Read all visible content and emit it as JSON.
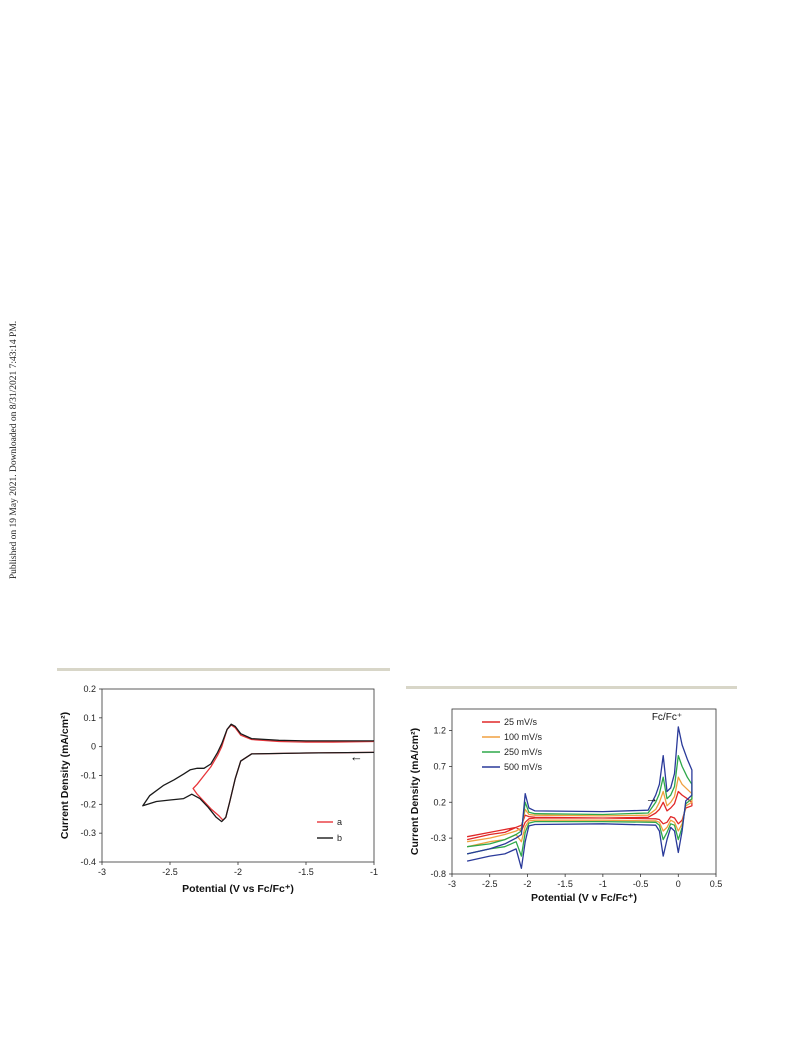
{
  "watermark": "Published on 19 May 2021. Downloaded on 8/31/2021 7:43:14 PM.",
  "colors": {
    "rule": "#d8d6c8",
    "axis": "#333333"
  },
  "chart_data": [
    {
      "type": "line",
      "title": "",
      "xlabel": "Potential (V vs Fc/Fc⁺)",
      "ylabel": "Current Density (mA/cm²)",
      "xlim": [
        -3,
        -1
      ],
      "ylim": [
        -0.4,
        0.2
      ],
      "xticks": [
        -3,
        -2.5,
        -2,
        -1.5,
        -1
      ],
      "yticks": [
        -0.4,
        -0.3,
        -0.2,
        -0.1,
        0,
        0.1,
        0.2
      ],
      "xtick_labels": [
        "-3",
        "-2.5",
        "-2",
        "-1.5",
        "-1"
      ],
      "ytick_labels": [
        "-0.4",
        "-0.3",
        "-0.2",
        "-0.1",
        "0",
        "0.1",
        "0.2"
      ],
      "grid": false,
      "legend": "bottom-right",
      "annotations": [
        {
          "text": "←",
          "x": -1.13,
          "y": -0.05
        }
      ],
      "series": [
        {
          "name": "a",
          "color": "#e8353a",
          "x": [
            -1.0,
            -1.5,
            -1.9,
            -1.98,
            -2.02,
            -2.06,
            -2.09,
            -2.11,
            -2.14,
            -2.2,
            -2.3,
            -2.33,
            -2.3,
            -2.25,
            -2.2,
            -2.15,
            -2.12,
            -2.1,
            -2.08,
            -2.05,
            -2.02,
            -1.98,
            -1.9,
            -1.7,
            -1.5,
            -1.3,
            -1.0
          ],
          "y": [
            -0.02,
            -0.022,
            -0.025,
            -0.05,
            -0.11,
            -0.19,
            -0.245,
            -0.255,
            -0.24,
            -0.215,
            -0.165,
            -0.145,
            -0.13,
            -0.1,
            -0.07,
            -0.03,
            0.0,
            0.03,
            0.06,
            0.075,
            0.065,
            0.04,
            0.025,
            0.018,
            0.016,
            0.016,
            0.018
          ]
        },
        {
          "name": "b",
          "color": "#1a1a1a",
          "x": [
            -1.0,
            -1.5,
            -1.9,
            -1.98,
            -2.02,
            -2.06,
            -2.09,
            -2.12,
            -2.16,
            -2.22,
            -2.28,
            -2.34,
            -2.4,
            -2.5,
            -2.6,
            -2.7,
            -2.65,
            -2.55,
            -2.47,
            -2.4,
            -2.35,
            -2.3,
            -2.25,
            -2.2,
            -2.15,
            -2.12,
            -2.1,
            -2.08,
            -2.05,
            -2.02,
            -1.98,
            -1.9,
            -1.7,
            -1.5,
            -1.3,
            -1.0
          ],
          "y": [
            -0.02,
            -0.022,
            -0.025,
            -0.05,
            -0.11,
            -0.19,
            -0.245,
            -0.26,
            -0.245,
            -0.21,
            -0.18,
            -0.165,
            -0.18,
            -0.185,
            -0.19,
            -0.205,
            -0.17,
            -0.135,
            -0.115,
            -0.095,
            -0.08,
            -0.075,
            -0.075,
            -0.06,
            -0.02,
            0.01,
            0.035,
            0.06,
            0.078,
            0.07,
            0.045,
            0.028,
            0.022,
            0.02,
            0.02,
            0.02
          ]
        }
      ]
    },
    {
      "type": "line",
      "title": "",
      "xlabel": "Potential (V v Fc/Fc⁺)",
      "ylabel": "Current Density (mA/cm²)",
      "xlim": [
        -3,
        0.5
      ],
      "ylim": [
        -0.8,
        1.5
      ],
      "xticks": [
        -3,
        -2.5,
        -2,
        -1.5,
        -1,
        -0.5,
        0,
        0.5
      ],
      "yticks": [
        -0.8,
        -0.3,
        0.2,
        0.7,
        1.2
      ],
      "xtick_labels": [
        "-3",
        "-2.5",
        "-2",
        "-1.5",
        "-1",
        "-0.5",
        "0",
        "0.5"
      ],
      "ytick_labels": [
        "-0.8",
        "-0.3",
        "0.2",
        "0.7",
        "1.2"
      ],
      "grid": false,
      "legend": "top-left",
      "annotations": [
        {
          "text": "Fc/Fc⁺",
          "x": -0.15,
          "y": 1.35
        },
        {
          "text": "→",
          "x": -0.35,
          "y": 0.2
        }
      ],
      "series": [
        {
          "name": "25 mV/s",
          "color": "#e02828",
          "x": [
            -2.8,
            -2.5,
            -2.3,
            -2.15,
            -2.08,
            -2.03,
            -1.98,
            -1.9,
            -1.0,
            -0.4,
            -0.3,
            -0.25,
            -0.2,
            -0.15,
            -0.1,
            -0.05,
            0.0,
            0.05,
            0.12,
            0.18,
            0.18,
            0.1,
            0.05,
            0.0,
            -0.05,
            -0.1,
            -0.15,
            -0.2,
            -0.25,
            -0.3,
            -1.0,
            -1.9,
            -1.98,
            -2.03,
            -2.08,
            -2.15,
            -2.3,
            -2.5,
            -2.8
          ],
          "y": [
            -0.28,
            -0.22,
            -0.18,
            -0.15,
            -0.12,
            0.02,
            0.0,
            -0.01,
            -0.02,
            -0.01,
            0.05,
            0.1,
            0.2,
            0.08,
            0.12,
            0.18,
            0.35,
            0.3,
            0.25,
            0.2,
            0.15,
            0.12,
            -0.05,
            -0.1,
            -0.02,
            0.0,
            -0.08,
            -0.1,
            -0.04,
            -0.03,
            -0.02,
            -0.02,
            -0.03,
            -0.08,
            -0.2,
            -0.15,
            -0.22,
            -0.25,
            -0.32
          ]
        },
        {
          "name": "100 mV/s",
          "color": "#f0a040",
          "x": [
            -2.8,
            -2.5,
            -2.3,
            -2.15,
            -2.08,
            -2.03,
            -1.98,
            -1.9,
            -1.0,
            -0.4,
            -0.3,
            -0.25,
            -0.2,
            -0.15,
            -0.1,
            -0.05,
            0.0,
            0.05,
            0.12,
            0.18,
            0.18,
            0.1,
            0.05,
            0.0,
            -0.05,
            -0.1,
            -0.15,
            -0.2,
            -0.25,
            -0.3,
            -1.0,
            -1.9,
            -1.98,
            -2.03,
            -2.08,
            -2.15,
            -2.3,
            -2.5,
            -2.8
          ],
          "y": [
            -0.35,
            -0.3,
            -0.25,
            -0.2,
            -0.16,
            0.1,
            0.03,
            0.02,
            0.01,
            0.02,
            0.1,
            0.2,
            0.35,
            0.15,
            0.2,
            0.28,
            0.55,
            0.45,
            0.38,
            0.32,
            0.2,
            0.15,
            -0.1,
            -0.2,
            -0.08,
            -0.05,
            -0.15,
            -0.2,
            -0.08,
            -0.06,
            -0.05,
            -0.05,
            -0.06,
            -0.14,
            -0.35,
            -0.25,
            -0.32,
            -0.35,
            -0.42
          ]
        },
        {
          "name": "250 mV/s",
          "color": "#2ea84a",
          "x": [
            -2.8,
            -2.5,
            -2.3,
            -2.15,
            -2.08,
            -2.03,
            -1.98,
            -1.9,
            -1.0,
            -0.4,
            -0.3,
            -0.25,
            -0.2,
            -0.15,
            -0.1,
            -0.05,
            0.0,
            0.05,
            0.12,
            0.18,
            0.18,
            0.1,
            0.05,
            0.0,
            -0.05,
            -0.1,
            -0.15,
            -0.2,
            -0.25,
            -0.3,
            -1.0,
            -1.9,
            -1.98,
            -2.03,
            -2.08,
            -2.15,
            -2.3,
            -2.5,
            -2.8
          ],
          "y": [
            -0.42,
            -0.38,
            -0.32,
            -0.25,
            -0.2,
            0.2,
            0.06,
            0.04,
            0.03,
            0.05,
            0.2,
            0.32,
            0.55,
            0.25,
            0.3,
            0.42,
            0.85,
            0.7,
            0.55,
            0.45,
            0.25,
            0.18,
            -0.15,
            -0.32,
            -0.12,
            -0.1,
            -0.22,
            -0.32,
            -0.12,
            -0.08,
            -0.07,
            -0.07,
            -0.09,
            -0.22,
            -0.55,
            -0.35,
            -0.42,
            -0.45,
            -0.52
          ]
        },
        {
          "name": "500 mV/s",
          "color": "#2a3a9a",
          "x": [
            -2.8,
            -2.5,
            -2.3,
            -2.15,
            -2.08,
            -2.03,
            -1.98,
            -1.9,
            -1.0,
            -0.4,
            -0.3,
            -0.25,
            -0.2,
            -0.15,
            -0.1,
            -0.05,
            0.0,
            0.05,
            0.12,
            0.18,
            0.18,
            0.1,
            0.05,
            0.0,
            -0.05,
            -0.1,
            -0.15,
            -0.2,
            -0.25,
            -0.3,
            -1.0,
            -1.9,
            -1.98,
            -2.03,
            -2.08,
            -2.15,
            -2.3,
            -2.5,
            -2.8
          ],
          "y": [
            -0.52,
            -0.45,
            -0.38,
            -0.3,
            -0.25,
            0.32,
            0.12,
            0.08,
            0.07,
            0.09,
            0.3,
            0.45,
            0.85,
            0.35,
            0.4,
            0.6,
            1.25,
            1.0,
            0.8,
            0.65,
            0.3,
            0.22,
            -0.2,
            -0.5,
            -0.2,
            -0.15,
            -0.32,
            -0.55,
            -0.2,
            -0.12,
            -0.1,
            -0.11,
            -0.13,
            -0.35,
            -0.72,
            -0.45,
            -0.52,
            -0.55,
            -0.62
          ]
        }
      ]
    }
  ]
}
